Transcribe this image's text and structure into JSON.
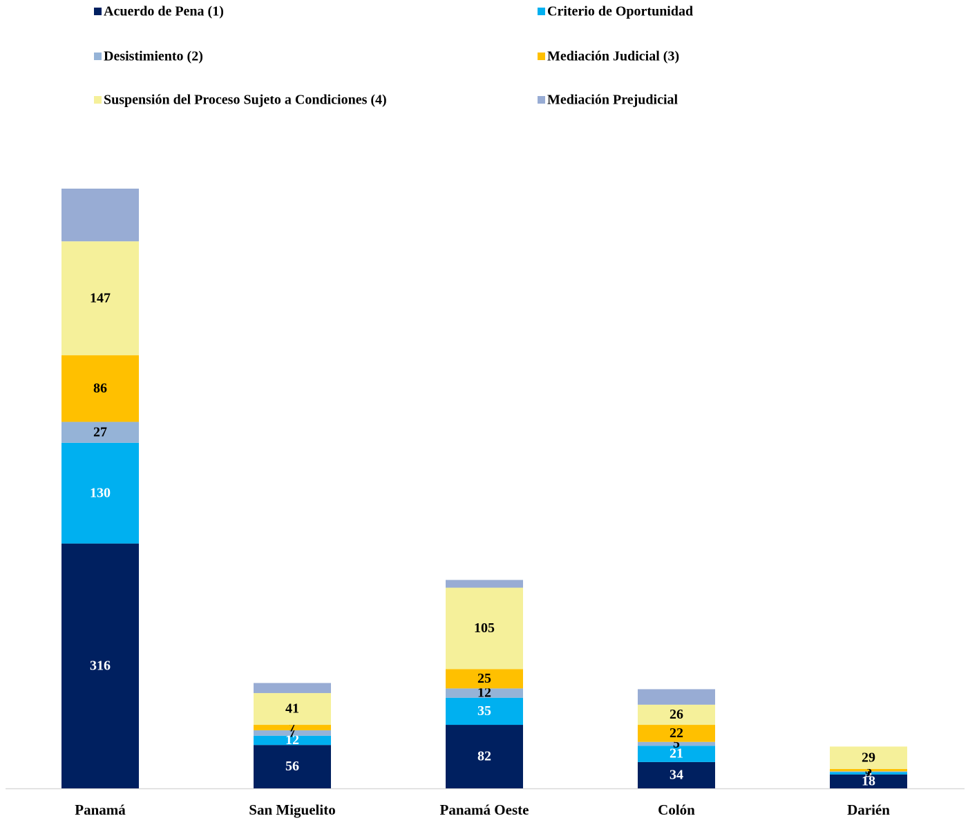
{
  "chart_data": {
    "type": "stacked_bar",
    "categories": [
      "Panamá",
      "San Miguelito",
      "Panamá Oeste",
      "Colón",
      "Darién"
    ],
    "series": [
      {
        "name": "Acuerdo de Pena (1)",
        "color": "#002060",
        "label_color": "#ffffff",
        "values": [
          316,
          56,
          82,
          34,
          18
        ]
      },
      {
        "name": "Criterio de Oportunidad",
        "color": "#00b0f0",
        "label_color": "#ffffff",
        "values": [
          130,
          12,
          35,
          21,
          3
        ]
      },
      {
        "name": "Desistimiento  (2)",
        "color": "#95b3d7",
        "label_color": "#000000",
        "values": [
          27,
          7,
          12,
          5,
          1
        ]
      },
      {
        "name": "Mediación Judicial  (3)",
        "color": "#ffc000",
        "label_color": "#000000",
        "values": [
          86,
          7,
          25,
          22,
          3
        ]
      },
      {
        "name": "Suspensión del Proceso Sujeto a Condiciones  (4)",
        "color": "#f5f09a",
        "label_color": "#000000",
        "values": [
          147,
          41,
          105,
          26,
          29
        ]
      },
      {
        "name": "Mediación Prejudicial",
        "color": "#98acd4",
        "data_labels": false,
        "values": [
          68,
          13,
          10,
          20,
          0
        ]
      }
    ]
  }
}
